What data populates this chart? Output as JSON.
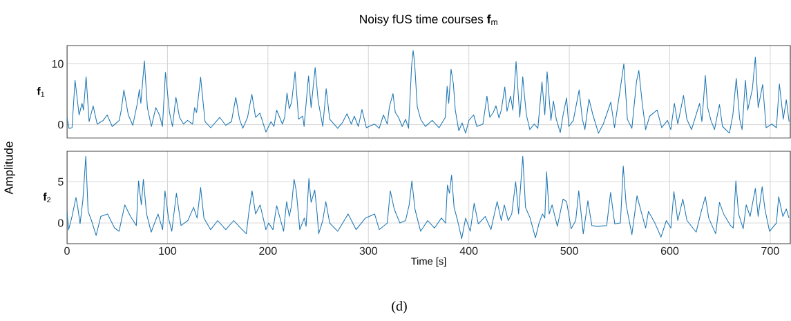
{
  "chart_data": [
    {
      "type": "line",
      "title": "Noisy fUS time courses **f**$_{m}$",
      "ylabel": "**f**$_{1}$",
      "xlim": [
        0,
        720
      ],
      "xticks": [
        0,
        100,
        200,
        300,
        400,
        500,
        600,
        700
      ],
      "ylim": [
        -2.2,
        13
      ],
      "yticks": [
        0,
        10
      ],
      "grid": true,
      "tick_labels": "y",
      "x": [
        0,
        2,
        5,
        8,
        12,
        15,
        16.4,
        19,
        22,
        26,
        30,
        36,
        40,
        45,
        52,
        54,
        56.6,
        61,
        65.5,
        70,
        72,
        73.5,
        77,
        80,
        84,
        88.4,
        92,
        95,
        98,
        102,
        105,
        108.4,
        112,
        116,
        120,
        125,
        127,
        129,
        133,
        137.4,
        143,
        152,
        158,
        163.7,
        168,
        171.7,
        175,
        179.7,
        184,
        187.7,
        192,
        198,
        203,
        206,
        208.7,
        214.4,
        216.7,
        219,
        221.3,
        223.6,
        227,
        230.5,
        234.6,
        236,
        240.4,
        243,
        247,
        250,
        254.6,
        258,
        261.5,
        269.5,
        274,
        278.7,
        283,
        286,
        290,
        293.6,
        298,
        306,
        310.8,
        315,
        318.8,
        321,
        324.5,
        326.8,
        330,
        333.7,
        337,
        340,
        343,
        344.5,
        346,
        348.6,
        352,
        356.7,
        363.5,
        370.4,
        376.6,
        378.4,
        380,
        382.3,
        384.6,
        386.5,
        390,
        393.3,
        396.8,
        400,
        404.8,
        408,
        414,
        418,
        420.9,
        424.3,
        427,
        430,
        432.3,
        435.8,
        438,
        441.5,
        443.8,
        447,
        450.7,
        453.7,
        455,
        457.3,
        460.7,
        465,
        468.7,
        472.8,
        475.6,
        477.9,
        481.7,
        484.2,
        487,
        491,
        493.8,
        497.3,
        499.5,
        504,
        509.8,
        513,
        515.5,
        519.6,
        523.5,
        529,
        533.8,
        541.3,
        545,
        551,
        554.3,
        557.8,
        562.3,
        566.9,
        569.2,
        572.6,
        576,
        580,
        587.4,
        592,
        597.7,
        601,
        604.6,
        608,
        613.7,
        617,
        621.7,
        629.7,
        632,
        635.4,
        637.7,
        641,
        644.5,
        649.5,
        652.5,
        659.4,
        662.8,
        666.2,
        669.6,
        672,
        675.3,
        677.6,
        682.2,
        685.2,
        688,
        692.5,
        695.9,
        701.6,
        706.2,
        709.1,
        713,
        716,
        718.8
      ],
      "series": [
        {
          "color": "#1f77b4",
          "values": [
            1.2,
            -0.6,
            -0.5,
            7.3,
            1.6,
            3.5,
            2.4,
            7.9,
            0.5,
            3.1,
            0.1,
            0.7,
            1.6,
            -0.3,
            0.7,
            2.4,
            5.7,
            1.6,
            -0.1,
            3.5,
            5.8,
            3.5,
            10.5,
            2.8,
            -0.3,
            2.8,
            1.6,
            -0.3,
            8.6,
            2.0,
            -0.3,
            4.5,
            1.2,
            0.1,
            0.7,
            0.1,
            2.8,
            2.0,
            7.8,
            0.5,
            -0.5,
            1.2,
            -0.1,
            0.5,
            4.5,
            0.9,
            -0.6,
            1.2,
            5.0,
            1.2,
            1.9,
            -1.2,
            0.5,
            -0.3,
            2.4,
            0.1,
            1.2,
            5.2,
            2.6,
            3.7,
            8.7,
            0.9,
            1.4,
            -0.3,
            8.0,
            2.8,
            9.4,
            3.9,
            -0.3,
            5.9,
            0.9,
            -0.6,
            0.3,
            1.8,
            0.1,
            1.4,
            -0.3,
            2.5,
            -0.5,
            0.1,
            -0.6,
            1.6,
            0.1,
            3.0,
            5.1,
            2.0,
            1.2,
            -0.3,
            0.9,
            -0.6,
            9.6,
            12.2,
            10.2,
            3.0,
            0.9,
            -0.3,
            0.7,
            -0.5,
            1.2,
            6.3,
            3.5,
            9.1,
            6.7,
            2.4,
            -1.0,
            0.3,
            -1.4,
            0.7,
            1.6,
            -0.3,
            0.1,
            4.7,
            1.2,
            2.0,
            3.1,
            1.1,
            2.4,
            6.2,
            2.2,
            4.7,
            2.4,
            10.4,
            1.2,
            7.9,
            5.4,
            1.6,
            -0.8,
            0.1,
            -0.6,
            7.0,
            1.6,
            8.7,
            0.7,
            3.9,
            0.9,
            -1.3,
            1.6,
            4.4,
            -0.3,
            0.7,
            5.7,
            0.9,
            -0.8,
            4.2,
            1.6,
            -1.4,
            0.1,
            3.7,
            -0.5,
            6.2,
            10.0,
            0.9,
            -0.6,
            7.1,
            8.9,
            3.5,
            -0.8,
            1.4,
            2.4,
            -0.5,
            0.7,
            -0.8,
            3.5,
            0.1,
            4.8,
            0.9,
            -0.8,
            3.5,
            0.5,
            8.1,
            2.8,
            0.7,
            -0.8,
            3.3,
            -0.3,
            -1.4,
            1.6,
            7.6,
            0.9,
            -0.8,
            7.3,
            2.4,
            5.8,
            11.1,
            2.8,
            6.6,
            -0.5,
            0.1,
            -0.5,
            6.7,
            0.9,
            4.1,
            0.5
          ]
        }
      ]
    },
    {
      "type": "line",
      "ylabel": "**f**$_{2}$",
      "xlabel": "Time [s]",
      "xlim": [
        0,
        720
      ],
      "xticks": [
        0,
        100,
        200,
        300,
        400,
        500,
        600,
        700
      ],
      "ylim": [
        -2.5,
        8.7
      ],
      "yticks": [
        0,
        5
      ],
      "grid": true,
      "annotations": [
        "Amplitude",
        "(d)"
      ],
      "x": [
        0,
        1.6,
        5,
        8.9,
        10.7,
        13,
        15.8,
        18.7,
        21,
        24.4,
        29,
        33.6,
        40.4,
        47.3,
        51.8,
        57.5,
        63.2,
        69,
        71.2,
        74,
        76,
        79.2,
        83.8,
        90.6,
        95.2,
        97.5,
        101,
        104.3,
        108.9,
        113.5,
        120.3,
        126,
        129.5,
        133,
        136.3,
        143,
        150,
        158,
        166,
        172.8,
        178.5,
        180.8,
        184.2,
        187.7,
        192.2,
        198,
        200.7,
        205,
        208.7,
        215.6,
        218.6,
        221.3,
        223.6,
        226,
        228.2,
        231.7,
        236.2,
        238,
        240.8,
        243,
        246.6,
        249,
        250.5,
        254.6,
        257.6,
        261.5,
        269.5,
        279.8,
        287.8,
        297,
        306.2,
        310.8,
        318.8,
        321.8,
        325.7,
        331.4,
        337,
        340.6,
        343.3,
        346.3,
        352,
        359,
        365.8,
        372.7,
        376.8,
        378.7,
        380.7,
        382.8,
        385.3,
        388.8,
        392.9,
        396.8,
        401.4,
        405.3,
        409.4,
        416.3,
        422,
        428.2,
        432.3,
        435.3,
        439.2,
        442.7,
        446.6,
        449.5,
        453.7,
        456.4,
        461,
        466.3,
        469.9,
        473.3,
        475.6,
        477.4,
        480,
        482.9,
        488.1,
        493.8,
        497.3,
        501.8,
        506.4,
        509.4,
        513.9,
        518.5,
        522.4,
        528.1,
        537.2,
        541.1,
        545.2,
        550.9,
        553.7,
        556.6,
        562.3,
        567.4,
        571.5,
        576,
        578.8,
        585.2,
        591.3,
        596.6,
        601.1,
        604.1,
        608,
        613,
        617.1,
        626.3,
        631.3,
        635.4,
        638.8,
        645.7,
        649.5,
        653.6,
        660.5,
        663.2,
        665.8,
        668.5,
        673.1,
        676.1,
        680,
        685.2,
        688,
        692,
        694.7,
        699.3,
        706.2,
        708.4,
        712.6,
        716,
        718.7
      ],
      "series": [
        {
          "color": "#1f77b4",
          "values": [
            1.4,
            -0.8,
            0.8,
            3.1,
            1.9,
            -0.1,
            2.8,
            8.1,
            1.4,
            0.3,
            -1.5,
            0.8,
            1.1,
            -0.6,
            -1.0,
            2.2,
            0.8,
            -0.3,
            5.1,
            2.2,
            5.3,
            1.1,
            -1.1,
            1.1,
            -0.8,
            3.9,
            0.6,
            -1.0,
            3.6,
            -0.3,
            0.3,
            1.9,
            0.6,
            4.3,
            0.6,
            -0.8,
            0.3,
            -0.8,
            0.3,
            -0.6,
            -1.3,
            1.1,
            3.9,
            1.1,
            2.2,
            -0.8,
            0,
            -0.8,
            2.1,
            -1.0,
            2.6,
            0.8,
            2.2,
            5.3,
            3.9,
            -0.8,
            0.6,
            -0.4,
            5.4,
            2.5,
            4.0,
            1.1,
            -1.3,
            0.3,
            2.6,
            0,
            -1.0,
            1.1,
            -0.8,
            0.6,
            1.1,
            -0.8,
            0,
            3.9,
            1.7,
            0,
            0.3,
            2.2,
            5.1,
            1.7,
            -1.0,
            0.3,
            -0.6,
            0.6,
            0,
            4.6,
            3.6,
            5.8,
            1.9,
            0.3,
            -1.9,
            0.6,
            -1.0,
            2.4,
            -0.1,
            0.8,
            -0.8,
            2.6,
            0.3,
            2.2,
            0.3,
            1.1,
            5.0,
            1.1,
            8.1,
            1.9,
            0.6,
            -1.8,
            0,
            1.1,
            0.6,
            6.2,
            1.1,
            2.2,
            -0.4,
            2.9,
            2.6,
            -0.7,
            0.3,
            3.9,
            -1.3,
            2.7,
            -0.3,
            -0.4,
            -0.3,
            3.7,
            -0.1,
            0,
            6.9,
            2.2,
            -1.4,
            3.3,
            1.4,
            -0.6,
            1.4,
            0,
            -1.7,
            0.3,
            -0.6,
            3.8,
            0.3,
            2.9,
            0.3,
            -1.1,
            1.4,
            3.2,
            0.6,
            -1.3,
            2.5,
            1.1,
            -0.3,
            -0.6,
            5.1,
            1.1,
            -0.7,
            2.2,
            0.8,
            4.2,
            0.8,
            4.4,
            1.7,
            -1.0,
            0,
            3.2,
            0.8,
            1.7,
            0.6
          ]
        }
      ]
    }
  ]
}
